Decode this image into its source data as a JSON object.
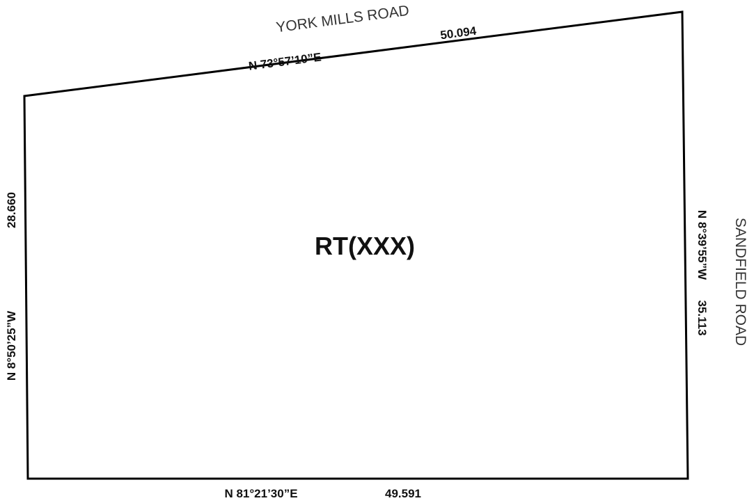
{
  "roads": {
    "north": "YORK MILLS ROAD",
    "east": "SANDFIELD ROAD"
  },
  "parcel": {
    "label": "RT(XXX)"
  },
  "boundaries": {
    "north": {
      "bearing": "N 73°57’10”E",
      "distance": "50.094"
    },
    "east": {
      "bearing": "N 8°39’55”W",
      "distance": "35.113"
    },
    "south": {
      "bearing": "N 81°21’30”E",
      "distance": "49.591"
    },
    "west": {
      "bearing": "N 8°50’25”W",
      "distance": "28.660"
    }
  },
  "colors": {
    "boundary_line": "#000000",
    "text": "#111111",
    "road_text": "#333333"
  }
}
